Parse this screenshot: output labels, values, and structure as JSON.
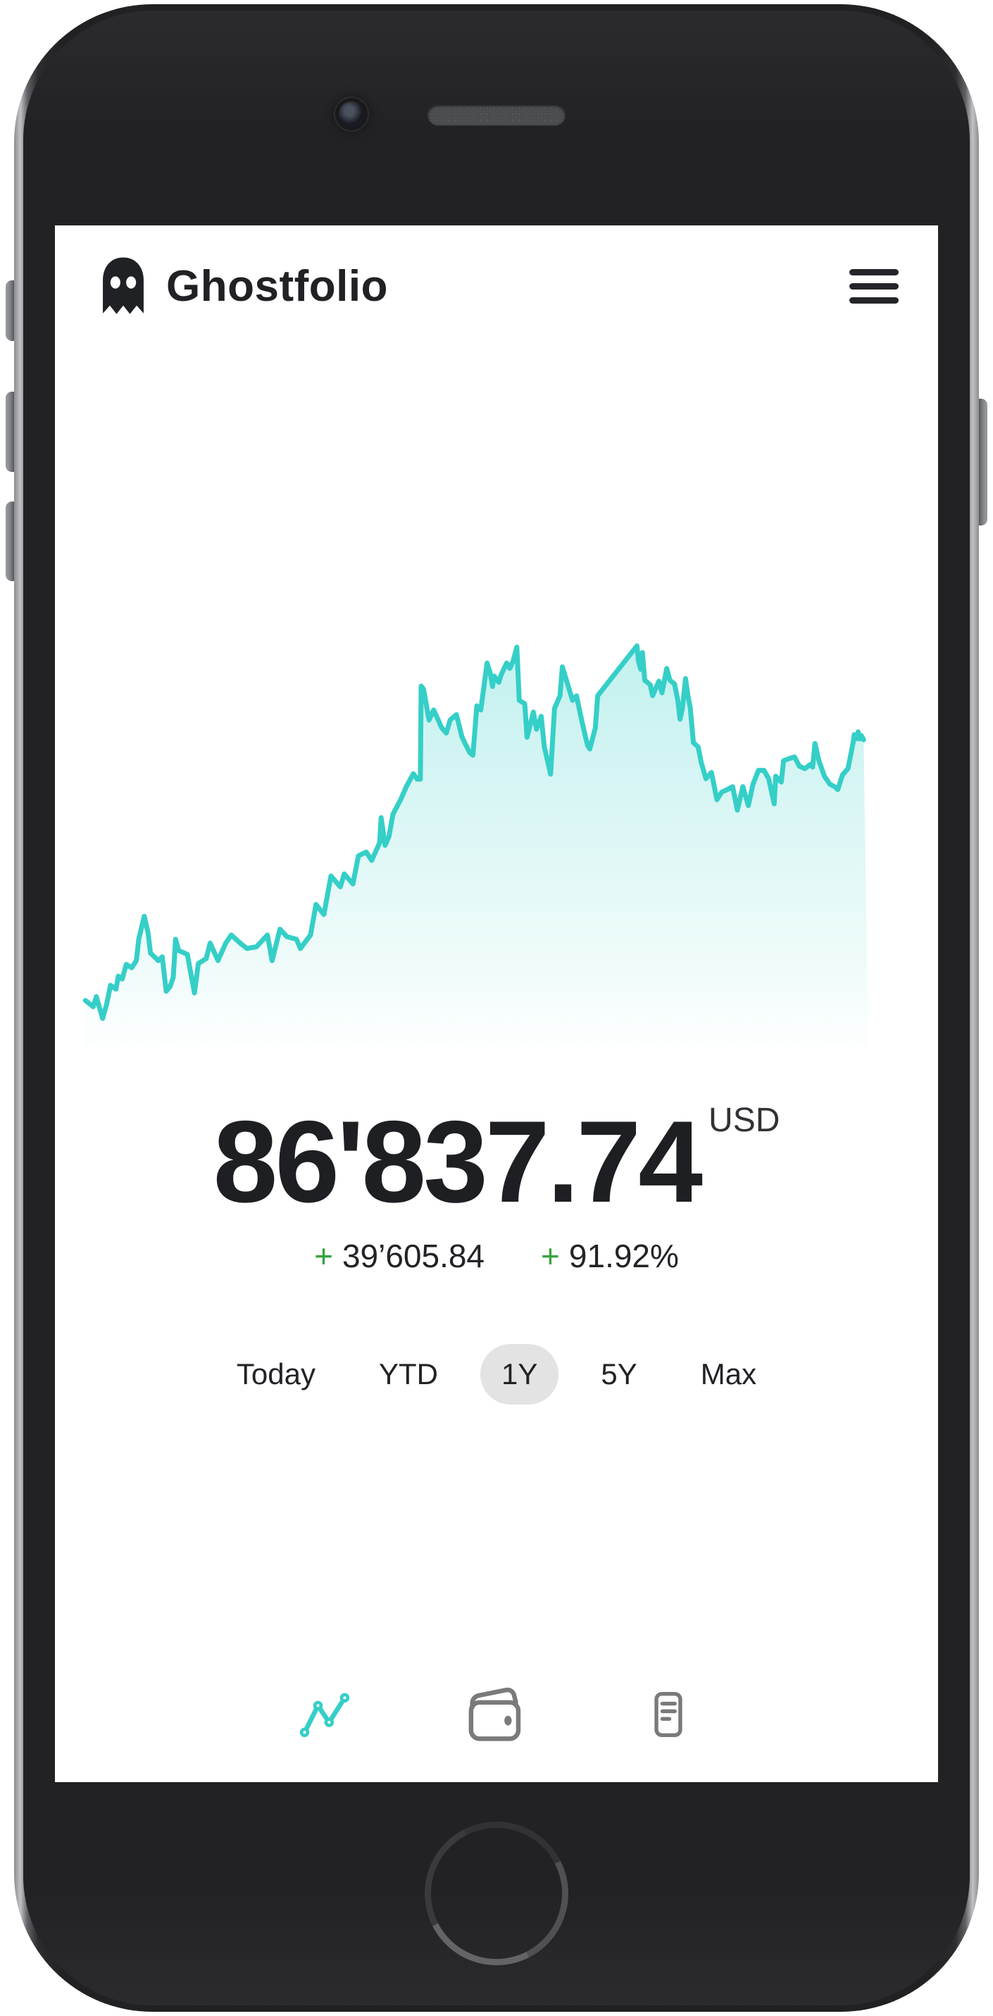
{
  "app": {
    "title": "Ghostfolio"
  },
  "portfolio": {
    "value": "86'837.74",
    "currency": "USD",
    "change_sign": "+",
    "change_absolute": "39’605.84",
    "change_percent": "91.92%"
  },
  "range_selector": {
    "selected": "1Y",
    "options": [
      {
        "label": "Today",
        "selected": false
      },
      {
        "label": "YTD",
        "selected": false
      },
      {
        "label": "1Y",
        "selected": true
      },
      {
        "label": "5Y",
        "selected": false
      },
      {
        "label": "Max",
        "selected": false
      }
    ]
  },
  "nav": [
    {
      "icon": "line-chart-icon",
      "active": true
    },
    {
      "icon": "wallet-icon",
      "active": false
    },
    {
      "icon": "report-icon",
      "active": false
    }
  ],
  "colors": {
    "accent_teal": "#35cfc8",
    "positive_green": "#36a33e",
    "text_dark": "#1d1f22",
    "pill_background": "#e3e3e3",
    "inactive_icon_gray": "#7a7a7a"
  },
  "chart_data": {
    "type": "area",
    "title": "Portfolio performance (1Y)",
    "xlabel": "",
    "ylabel": "",
    "axes_shown": false,
    "legend": "none",
    "line_color": "#35cfc8",
    "fill": "vertical gradient of line color fading to transparent at bottom",
    "x_range_note": "points normalized 0-100 across the 1Y period; y normalized 0-100 with 0 = top of chart (max value region), 100 = bottom",
    "points": [
      [
        0.2,
        86.6
      ],
      [
        1.2,
        88.1
      ],
      [
        1.6,
        85.7
      ],
      [
        2.4,
        90.9
      ],
      [
        2.9,
        87.6
      ],
      [
        3.4,
        83.0
      ],
      [
        4.1,
        83.9
      ],
      [
        4.4,
        80.8
      ],
      [
        4.9,
        81.5
      ],
      [
        5.4,
        78.0
      ],
      [
        6.1,
        78.8
      ],
      [
        6.7,
        77.1
      ],
      [
        7.0,
        72.0
      ],
      [
        7.7,
        66.5
      ],
      [
        8.2,
        70.5
      ],
      [
        8.5,
        75.3
      ],
      [
        9.5,
        77.1
      ],
      [
        10.0,
        76.2
      ],
      [
        10.5,
        84.4
      ],
      [
        11.0,
        83.3
      ],
      [
        11.4,
        81.1
      ],
      [
        11.7,
        72.0
      ],
      [
        12.1,
        74.7
      ],
      [
        13.2,
        75.6
      ],
      [
        14.1,
        84.8
      ],
      [
        14.6,
        77.8
      ],
      [
        15.6,
        76.6
      ],
      [
        16.1,
        72.9
      ],
      [
        17.1,
        77.1
      ],
      [
        18.1,
        72.9
      ],
      [
        18.8,
        71.0
      ],
      [
        20.1,
        73.2
      ],
      [
        20.8,
        74.2
      ],
      [
        22.0,
        73.8
      ],
      [
        23.4,
        71.0
      ],
      [
        24.0,
        77.1
      ],
      [
        25.0,
        69.6
      ],
      [
        25.9,
        71.4
      ],
      [
        27.1,
        72.0
      ],
      [
        27.6,
        74.2
      ],
      [
        28.9,
        71.0
      ],
      [
        29.6,
        63.7
      ],
      [
        30.6,
        66.1
      ],
      [
        31.5,
        56.9
      ],
      [
        32.7,
        59.5
      ],
      [
        33.2,
        56.4
      ],
      [
        34.3,
        58.8
      ],
      [
        35.0,
        52.1
      ],
      [
        36.0,
        51.2
      ],
      [
        36.7,
        53.2
      ],
      [
        37.7,
        49.0
      ],
      [
        37.9,
        43.0
      ],
      [
        38.4,
        49.6
      ],
      [
        38.9,
        47.5
      ],
      [
        39.4,
        42.2
      ],
      [
        40.4,
        38.6
      ],
      [
        41.1,
        35.6
      ],
      [
        42.0,
        32.5
      ],
      [
        42.5,
        33.8
      ],
      [
        42.9,
        33.8
      ],
      [
        43.0,
        11.6
      ],
      [
        43.3,
        12.3
      ],
      [
        44.0,
        19.7
      ],
      [
        44.6,
        17.3
      ],
      [
        45.6,
        21.5
      ],
      [
        46.2,
        22.8
      ],
      [
        46.7,
        19.7
      ],
      [
        47.5,
        18.4
      ],
      [
        48.2,
        23.7
      ],
      [
        48.6,
        25.3
      ],
      [
        49.2,
        27.5
      ],
      [
        49.6,
        28.1
      ],
      [
        50.1,
        16.3
      ],
      [
        50.6,
        17.3
      ],
      [
        51.4,
        6.1
      ],
      [
        51.8,
        8.5
      ],
      [
        52.1,
        11.7
      ],
      [
        52.3,
        9.2
      ],
      [
        52.9,
        10.7
      ],
      [
        53.2,
        8.9
      ],
      [
        53.9,
        6.1
      ],
      [
        54.3,
        7.4
      ],
      [
        54.7,
        5.7
      ],
      [
        55.2,
        2.3
      ],
      [
        55.5,
        15.0
      ],
      [
        56.2,
        15.8
      ],
      [
        56.5,
        23.8
      ],
      [
        57.3,
        17.8
      ],
      [
        57.7,
        21.9
      ],
      [
        58.3,
        18.8
      ],
      [
        58.7,
        26.1
      ],
      [
        59.5,
        32.6
      ],
      [
        60.0,
        16.9
      ],
      [
        60.7,
        13.9
      ],
      [
        61.0,
        7.0
      ],
      [
        61.7,
        11.3
      ],
      [
        62.3,
        15.0
      ],
      [
        62.8,
        13.9
      ],
      [
        63.5,
        20.1
      ],
      [
        64.2,
        25.7
      ],
      [
        64.5,
        26.6
      ],
      [
        65.2,
        21.6
      ],
      [
        65.5,
        13.9
      ],
      [
        70.5,
        2.0
      ],
      [
        70.7,
        5.7
      ],
      [
        71.0,
        7.6
      ],
      [
        71.2,
        3.6
      ],
      [
        71.5,
        10.2
      ],
      [
        72.2,
        11.3
      ],
      [
        72.5,
        13.9
      ],
      [
        73.0,
        11.7
      ],
      [
        73.3,
        10.4
      ],
      [
        73.7,
        13.2
      ],
      [
        74.3,
        7.4
      ],
      [
        74.7,
        10.2
      ],
      [
        75.3,
        11.1
      ],
      [
        75.7,
        14.8
      ],
      [
        76.0,
        19.5
      ],
      [
        76.3,
        16.9
      ],
      [
        76.7,
        9.8
      ],
      [
        77.0,
        13.9
      ],
      [
        77.3,
        16.7
      ],
      [
        77.7,
        25.1
      ],
      [
        78.3,
        26.1
      ],
      [
        78.7,
        29.8
      ],
      [
        79.3,
        33.7
      ],
      [
        80.0,
        32.2
      ],
      [
        80.7,
        38.7
      ],
      [
        81.3,
        36.9
      ],
      [
        82.0,
        36.3
      ],
      [
        82.7,
        35.6
      ],
      [
        83.3,
        41.2
      ],
      [
        84.0,
        35.6
      ],
      [
        84.7,
        40.1
      ],
      [
        85.3,
        35.0
      ],
      [
        86.0,
        31.7
      ],
      [
        86.7,
        31.7
      ],
      [
        87.3,
        33.7
      ],
      [
        88.0,
        39.7
      ],
      [
        88.2,
        33.1
      ],
      [
        88.9,
        34.5
      ],
      [
        89.2,
        29.4
      ],
      [
        89.9,
        28.9
      ],
      [
        90.6,
        28.5
      ],
      [
        91.2,
        30.7
      ],
      [
        91.9,
        31.3
      ],
      [
        92.6,
        30.3
      ],
      [
        92.9,
        30.9
      ],
      [
        93.2,
        25.3
      ],
      [
        93.7,
        29.4
      ],
      [
        94.4,
        33.1
      ],
      [
        95.1,
        35.0
      ],
      [
        95.7,
        35.6
      ],
      [
        96.1,
        36.3
      ],
      [
        96.7,
        32.8
      ],
      [
        97.4,
        31.3
      ],
      [
        97.7,
        28.5
      ],
      [
        98.1,
        24.7
      ],
      [
        98.2,
        23.2
      ],
      [
        98.4,
        24.2
      ],
      [
        98.7,
        22.5
      ],
      [
        98.9,
        24.2
      ],
      [
        99.1,
        23.4
      ],
      [
        99.4,
        24.4
      ]
    ]
  }
}
